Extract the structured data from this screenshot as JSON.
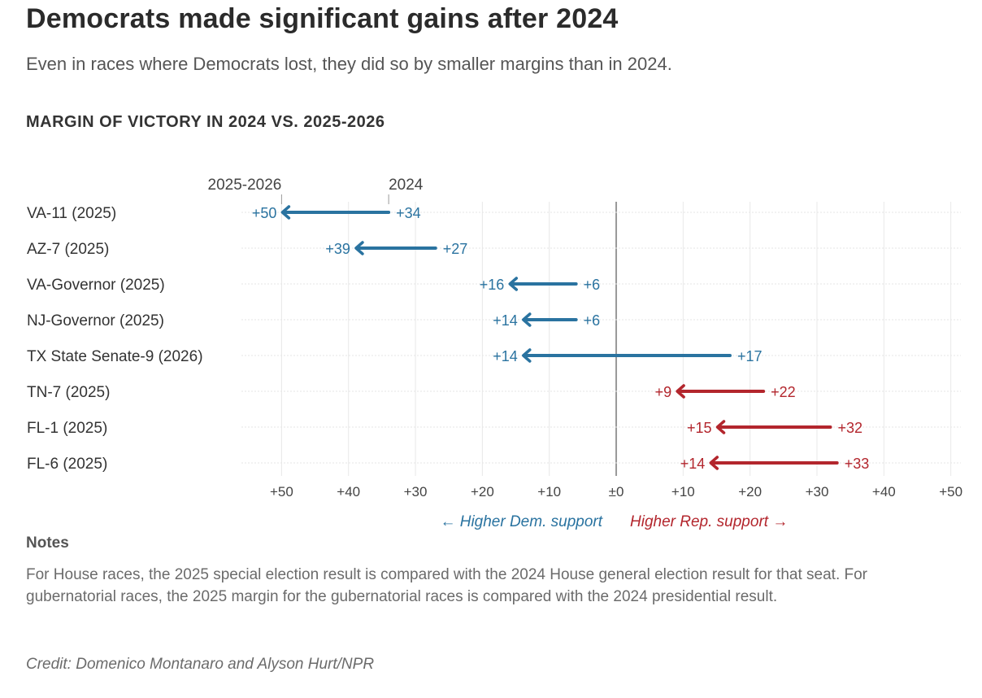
{
  "title": "Democrats made significant gains after 2024",
  "subtitle": "Even in races where Democrats lost, they did so by smaller margins than in 2024.",
  "chart_data": {
    "type": "arrow-dot",
    "title": "MARGIN OF VICTORY IN 2024 VS. 2025-2026",
    "legend": {
      "from": "2024",
      "to": "2025-2026"
    },
    "xlim": [
      -56,
      51.5
    ],
    "x_ticks": [
      {
        "value": -50,
        "label": "+50"
      },
      {
        "value": -40,
        "label": "+40"
      },
      {
        "value": -30,
        "label": "+30"
      },
      {
        "value": -20,
        "label": "+20"
      },
      {
        "value": -10,
        "label": "+10"
      },
      {
        "value": 0,
        "label": "±0"
      },
      {
        "value": 10,
        "label": "+10"
      },
      {
        "value": 20,
        "label": "+20"
      },
      {
        "value": 30,
        "label": "+30"
      },
      {
        "value": 40,
        "label": "+40"
      },
      {
        "value": 50,
        "label": "+50"
      }
    ],
    "direction_labels": {
      "dem": "← Higher Dem. support",
      "rep": "Higher Rep. support →"
    },
    "colors": {
      "dem": "#2a73a0",
      "rep": "#b3262d"
    },
    "rows": [
      {
        "label": "VA-11 (2025)",
        "party": "dem",
        "margin_2024": 34,
        "margin_2025_2026": 50,
        "label_2024": "+34",
        "label_new": "+50"
      },
      {
        "label": "AZ-7 (2025)",
        "party": "dem",
        "margin_2024": 27,
        "margin_2025_2026": 39,
        "label_2024": "+27",
        "label_new": "+39"
      },
      {
        "label": "VA-Governor (2025)",
        "party": "dem",
        "margin_2024": 6,
        "margin_2025_2026": 16,
        "label_2024": "+6",
        "label_new": "+16"
      },
      {
        "label": "NJ-Governor (2025)",
        "party": "dem",
        "margin_2024": 6,
        "margin_2025_2026": 14,
        "label_2024": "+6",
        "label_new": "+14"
      },
      {
        "label": "TX State Senate-9 (2026)",
        "party": "rep",
        "margin_2024": 17,
        "margin_2025_2026": -14,
        "party_new": "dem",
        "label_2024": "+17",
        "label_new": "+14"
      },
      {
        "label": "TN-7 (2025)",
        "party": "rep",
        "margin_2024": 22,
        "margin_2025_2026": 9,
        "label_2024": "+22",
        "label_new": "+9"
      },
      {
        "label": "FL-1 (2025)",
        "party": "rep",
        "margin_2024": 32,
        "margin_2025_2026": 15,
        "label_2024": "+32",
        "label_new": "+15"
      },
      {
        "label": "FL-6 (2025)",
        "party": "rep",
        "margin_2024": 33,
        "margin_2025_2026": 14,
        "label_2024": "+33",
        "label_new": "+14"
      }
    ]
  },
  "notes": {
    "heading": "Notes",
    "text": "For House races, the 2025 special election result is compared with the 2024 House general election result for that seat. For gubernatorial races, the 2025 margin for the gubernatorial races is compared with the 2024 presidential result."
  },
  "credit": "Credit: Domenico Montanaro and Alyson Hurt/NPR"
}
